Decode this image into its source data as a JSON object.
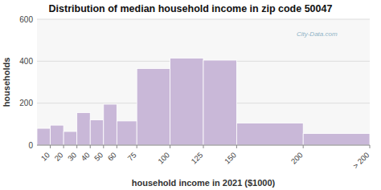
{
  "chart_data": {
    "type": "histogram",
    "title": "Distribution of median household income in zip code 50047",
    "xlabel": "household income in 2021 ($1000)",
    "ylabel": "households",
    "bins": [
      0,
      10,
      20,
      30,
      40,
      50,
      60,
      75,
      100,
      125,
      150,
      200,
      250
    ],
    "values": [
      80,
      95,
      65,
      155,
      120,
      195,
      115,
      365,
      415,
      405,
      105,
      55
    ],
    "color": "#c9b8d8",
    "xlim": [
      0,
      250
    ],
    "xticks": [
      10,
      20,
      30,
      40,
      50,
      60,
      75,
      100,
      125,
      150,
      200,
      {
        "value": 250,
        "label": "> 200"
      }
    ],
    "ylim": [
      0,
      600
    ],
    "yticks": [
      0,
      200,
      400,
      600
    ],
    "grid": true,
    "annotations": [
      "City-Data.com"
    ]
  }
}
